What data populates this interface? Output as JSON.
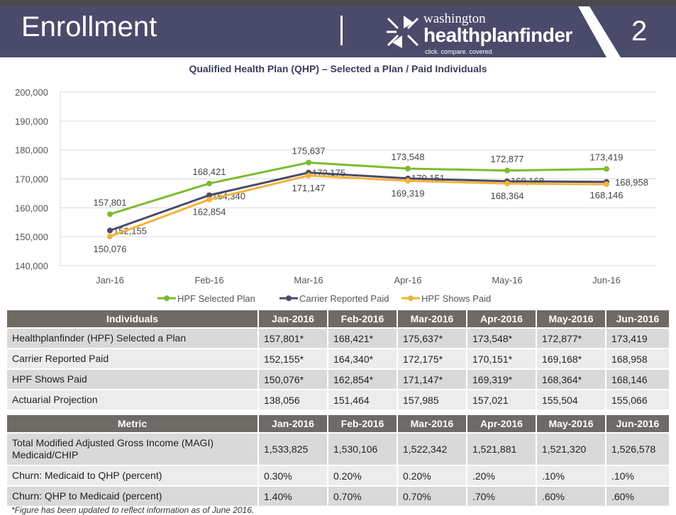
{
  "header": {
    "title": "Enrollment",
    "logo": {
      "line1": "washington",
      "line2": "healthplanfinder",
      "tagline": "click. compare. covered."
    },
    "page_number": "2"
  },
  "chart_data": {
    "type": "line",
    "title": "Qualified Health Plan (QHP) – Selected a Plan / Paid Individuals",
    "categories": [
      "Jan-16",
      "Feb-16",
      "Mar-16",
      "Apr-16",
      "May-16",
      "Jun-16"
    ],
    "ylim": [
      140000,
      200000
    ],
    "yticks": [
      "140,000",
      "150,000",
      "160,000",
      "170,000",
      "180,000",
      "190,000",
      "200,000"
    ],
    "grid": true,
    "legend": "bottom",
    "series": [
      {
        "name": "HPF Selected Plan",
        "color": "#7dbb2e",
        "values": [
          157801,
          168421,
          175637,
          173548,
          172877,
          173419
        ],
        "labels": [
          "157,801",
          "168,421",
          "175,637",
          "173,548",
          "172,877",
          "173,419"
        ]
      },
      {
        "name": "Carrier Reported Paid",
        "color": "#4a4a6b",
        "values": [
          152155,
          164340,
          172175,
          170151,
          169168,
          168958
        ],
        "labels": [
          "152,155",
          "164,340",
          "172,175",
          "170,151",
          "169,168",
          "168,958"
        ]
      },
      {
        "name": "HPF Shows Paid",
        "color": "#f5b335",
        "values": [
          150076,
          162854,
          171147,
          169319,
          168364,
          168146
        ],
        "labels": [
          "150,076",
          "162,854",
          "171,147",
          "169,319",
          "168,364",
          "168,146"
        ]
      }
    ]
  },
  "table1": {
    "headers": [
      "Individuals",
      "Jan-2016",
      "Feb-2016",
      "Mar-2016",
      "Apr-2016",
      "May-2016",
      "Jun-2016"
    ],
    "rows": [
      [
        "Healthplanfinder (HPF) Selected a Plan",
        "157,801*",
        "168,421*",
        "175,637*",
        "173,548*",
        "172,877*",
        "173,419"
      ],
      [
        "Carrier Reported Paid",
        "152,155*",
        "164,340*",
        "172,175*",
        "170,151*",
        "169,168*",
        "168,958"
      ],
      [
        "HPF Shows Paid",
        "150,076*",
        "162,854*",
        "171,147*",
        "169,319*",
        "168,364*",
        "168,146"
      ],
      [
        "Actuarial Projection",
        "138,056",
        "151,464",
        "157,985",
        "157,021",
        "155,504",
        "155,066"
      ]
    ]
  },
  "table2": {
    "headers": [
      "Metric",
      "Jan-2016",
      "Feb-2016",
      "Mar-2016",
      "Apr-2016",
      "May-2016",
      "Jun-2016"
    ],
    "rows": [
      [
        "Total Modified Adjusted Gross Income (MAGI) Medicaid/CHIP",
        "1,533,825",
        "1,530,106",
        "1,522,342",
        "1,521,881",
        "1,521,320",
        "1,526,578"
      ],
      [
        "Churn: Medicaid to QHP (percent)",
        "0.30%",
        "0.20%",
        "0.20%",
        ".20%",
        ".10%",
        ".10%"
      ],
      [
        "Churn: QHP to Medicaid (percent)",
        "1.40%",
        "0.70%",
        "0.70%",
        ".70%",
        ".60%",
        ".60%"
      ]
    ]
  },
  "footnote": "*Figure has been updated to reflect information as of June 2016."
}
